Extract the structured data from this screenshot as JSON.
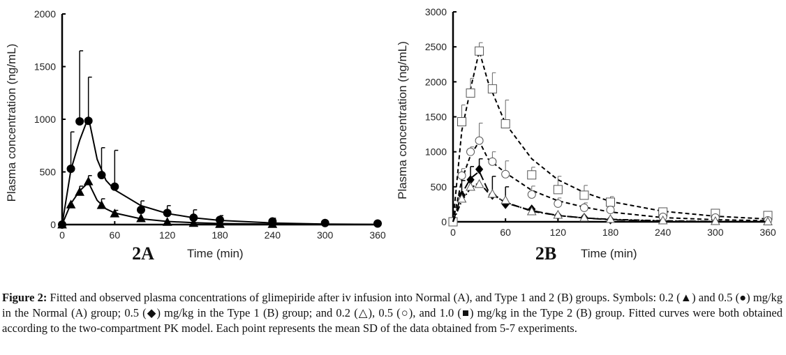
{
  "chart_data": [
    {
      "type": "line",
      "panel_label": "2A",
      "xlabel": "Time (min)",
      "ylabel": "Plasma concentration (ng/mL)",
      "xlim": [
        0,
        360
      ],
      "ylim": [
        0,
        2000
      ],
      "xticks": [
        "0",
        "60",
        "120",
        "180",
        "240",
        "300",
        "360"
      ],
      "yticks": [
        "0",
        "500",
        "1000",
        "1500",
        "2000"
      ],
      "grid": false,
      "series": [
        {
          "marker": "filled-circle",
          "x": [
            0,
            10,
            20,
            30,
            45,
            60,
            90,
            120,
            150,
            180,
            240,
            300,
            360
          ],
          "y": [
            0,
            530,
            980,
            985,
            470,
            360,
            140,
            110,
            65,
            45,
            30,
            15,
            10
          ],
          "sd_top": [
            null,
            880,
            1650,
            1400,
            730,
            705,
            225,
            180,
            140,
            85,
            60,
            null,
            null
          ],
          "fit_x": [
            0,
            10,
            20,
            30,
            40,
            50,
            60,
            90,
            120,
            150,
            180,
            240,
            300,
            360
          ],
          "fit_y": [
            0,
            520,
            800,
            1020,
            620,
            420,
            330,
            180,
            105,
            65,
            40,
            15,
            5,
            2
          ],
          "line": "solid"
        },
        {
          "marker": "filled-triangle",
          "x": [
            0,
            10,
            20,
            30,
            45,
            60,
            90,
            120,
            150,
            180,
            240
          ],
          "y": [
            0,
            190,
            310,
            410,
            185,
            105,
            60,
            25,
            15,
            5,
            5
          ],
          "sd_top": [
            null,
            null,
            365,
            465,
            245,
            135,
            null,
            null,
            null,
            null,
            null
          ],
          "fit_x": [
            0,
            10,
            20,
            30,
            40,
            50,
            60,
            90,
            120,
            150,
            180,
            240,
            300,
            360
          ],
          "fit_y": [
            0,
            200,
            320,
            400,
            230,
            150,
            110,
            55,
            30,
            18,
            10,
            4,
            1,
            0
          ],
          "line": "solid"
        }
      ]
    },
    {
      "type": "line",
      "panel_label": "2B",
      "xlabel": "Time (min)",
      "ylabel": "Plasma concentration (ng/mL)",
      "xlim": [
        0,
        360
      ],
      "ylim": [
        0,
        3000
      ],
      "xticks": [
        "0",
        "60",
        "120",
        "180",
        "240",
        "300",
        "360"
      ],
      "yticks": [
        "0",
        "500",
        "1000",
        "1500",
        "2000",
        "2500",
        "3000"
      ],
      "grid": false,
      "series": [
        {
          "marker": "open-square",
          "x": [
            0,
            10,
            20,
            30,
            45,
            60,
            90,
            120,
            150,
            180,
            240,
            300,
            360
          ],
          "y": [
            0,
            1430,
            1840,
            2440,
            1900,
            1400,
            670,
            460,
            380,
            280,
            140,
            120,
            90
          ],
          "sd_top": [
            null,
            1670,
            2050,
            2560,
            2130,
            1740,
            780,
            650,
            520,
            360,
            180,
            160,
            140
          ],
          "fit_x": [
            0,
            10,
            20,
            30,
            40,
            60,
            90,
            120,
            150,
            180,
            240,
            300,
            360
          ],
          "fit_y": [
            0,
            1300,
            1900,
            2440,
            2000,
            1400,
            900,
            600,
            420,
            290,
            150,
            80,
            40
          ],
          "line": "dashed"
        },
        {
          "marker": "open-circle",
          "x": [
            10,
            20,
            30,
            45,
            60,
            90,
            120,
            150,
            180,
            240,
            300,
            360
          ],
          "y": [
            660,
            1000,
            1160,
            860,
            680,
            390,
            260,
            200,
            170,
            70,
            60,
            20
          ],
          "sd_top": [
            760,
            1070,
            1410,
            1000,
            870,
            510,
            340,
            270,
            null,
            null,
            null,
            null
          ],
          "fit_x": [
            0,
            10,
            20,
            30,
            40,
            60,
            90,
            120,
            150,
            180,
            240,
            300,
            360
          ],
          "fit_y": [
            0,
            600,
            950,
            1150,
            900,
            700,
            450,
            300,
            210,
            140,
            60,
            30,
            15
          ],
          "line": "dashed"
        },
        {
          "marker": "filled-diamond",
          "x": [
            10,
            20,
            30,
            45,
            60,
            90,
            120,
            150,
            180
          ],
          "y": [
            380,
            600,
            750,
            380,
            250,
            180,
            90,
            60,
            30
          ],
          "sd_top": [
            590,
            790,
            900,
            650,
            500,
            null,
            null,
            null,
            null
          ],
          "fit_x": [
            0,
            10,
            20,
            30,
            40,
            60,
            90,
            120,
            150,
            180,
            240,
            300,
            360
          ],
          "fit_y": [
            0,
            400,
            620,
            720,
            450,
            270,
            160,
            90,
            55,
            30,
            10,
            4,
            1
          ],
          "line": "long-dash"
        },
        {
          "marker": "open-triangle",
          "x": [
            10,
            20,
            30,
            45,
            60,
            90,
            120,
            150,
            180,
            240,
            300,
            360
          ],
          "y": [
            330,
            500,
            540,
            400,
            310,
            150,
            100,
            60,
            40,
            20,
            10,
            5
          ],
          "sd_top": [
            null,
            null,
            null,
            null,
            null,
            null,
            null,
            null,
            null,
            null,
            null,
            null
          ],
          "fit_x": [
            0,
            10,
            20,
            30,
            40,
            60,
            90,
            120,
            150,
            180,
            240,
            300,
            360
          ],
          "fit_y": [
            0,
            300,
            480,
            560,
            420,
            280,
            150,
            90,
            55,
            35,
            15,
            5,
            2
          ],
          "line": "dash-dot"
        }
      ]
    }
  ],
  "caption": {
    "label": "Figure 2:",
    "text": " Fitted and observed plasma concentrations of glimepiride after iv infusion into Normal (A), and Type 1 and 2 (B) groups. Symbols: 0.2 (▲)  and 0.5 (●)  mg/kg  in  the Normal (A) group; 0.5 (◆) mg/kg  in the Type 1 (B) group;  and 0.2 (△),  0.5 (○), and 1.0 (■)  mg/kg  in the Type 2 (B) group. Fitted curves were both obtained according to the two-compartment PK model. Each point represents the mean  SD of the data obtained from 5-7 experiments."
  }
}
